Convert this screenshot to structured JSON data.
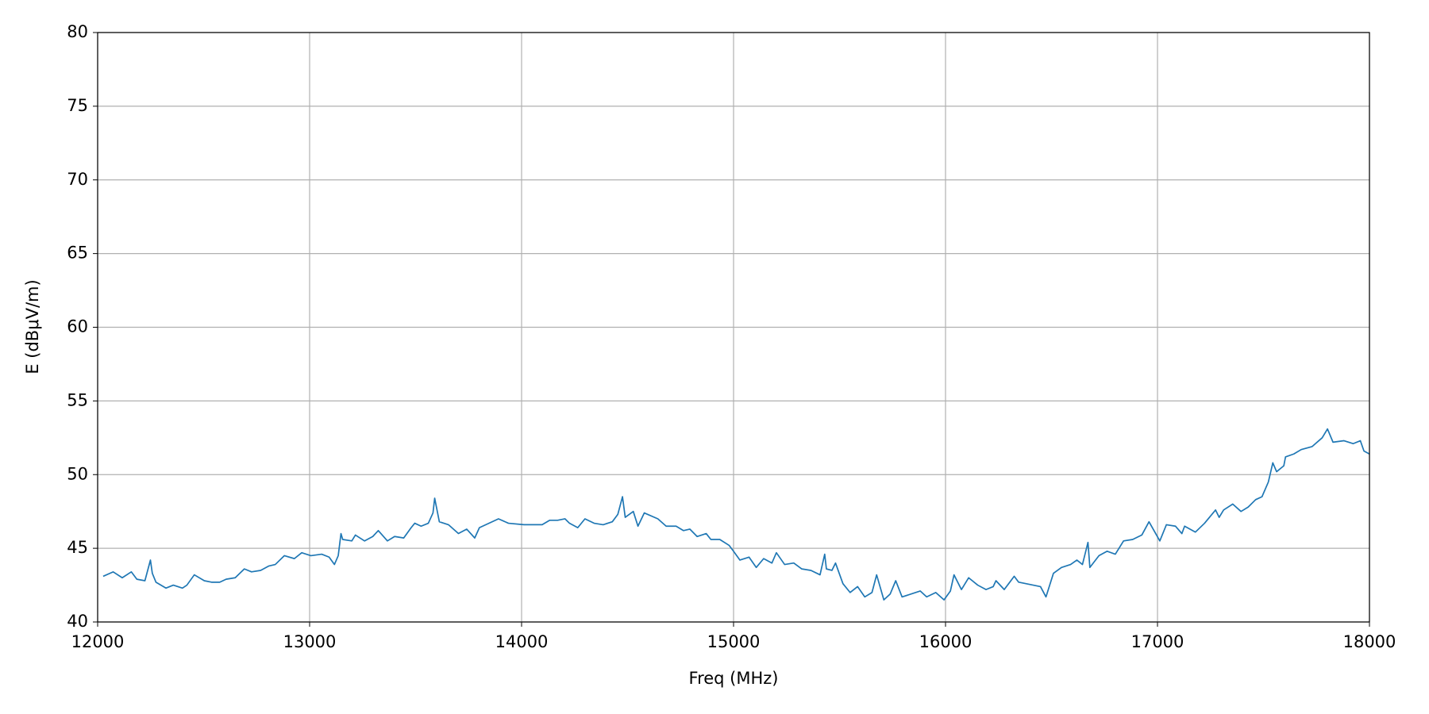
{
  "chart_data": {
    "type": "line",
    "xlabel": "Freq (MHz)",
    "ylabel": "E (dBμV/m)",
    "xlim": [
      12000,
      18000
    ],
    "ylim": [
      40,
      80
    ],
    "xticks": [
      12000,
      13000,
      14000,
      15000,
      16000,
      17000,
      18000
    ],
    "yticks": [
      40,
      45,
      50,
      55,
      60,
      65,
      70,
      75,
      80
    ],
    "grid": true,
    "series": [
      {
        "color": "#1f77b4",
        "x": [
          12026,
          12073,
          12116,
          12159,
          12185,
          12223,
          12249,
          12258,
          12275,
          12322,
          12357,
          12400,
          12421,
          12456,
          12503,
          12537,
          12576,
          12606,
          12649,
          12692,
          12726,
          12769,
          12808,
          12838,
          12881,
          12928,
          12963,
          13006,
          13057,
          13092,
          13117,
          13135,
          13148,
          13156,
          13199,
          13216,
          13259,
          13298,
          13324,
          13367,
          13401,
          13444,
          13479,
          13496,
          13526,
          13560,
          13582,
          13590,
          13612,
          13655,
          13702,
          13741,
          13779,
          13801,
          13891,
          13938,
          14011,
          14097,
          14132,
          14170,
          14205,
          14226,
          14265,
          14299,
          14342,
          14385,
          14428,
          14454,
          14476,
          14489,
          14527,
          14549,
          14579,
          14643,
          14682,
          14729,
          14764,
          14794,
          14828,
          14871,
          14893,
          14935,
          14979,
          15000,
          15030,
          15073,
          15107,
          15142,
          15181,
          15202,
          15241,
          15284,
          15322,
          15365,
          15408,
          15430,
          15438,
          15464,
          15481,
          15516,
          15550,
          15585,
          15619,
          15653,
          15675,
          15709,
          15739,
          15765,
          15795,
          15881,
          15911,
          15954,
          15993,
          16023,
          16040,
          16075,
          16109,
          16152,
          16191,
          16225,
          16238,
          16277,
          16324,
          16345,
          16448,
          16474,
          16509,
          16547,
          16590,
          16620,
          16646,
          16672,
          16681,
          16724,
          16762,
          16801,
          16840,
          16883,
          16926,
          16960,
          17011,
          17042,
          17085,
          17115,
          17128,
          17179,
          17222,
          17274,
          17291,
          17312,
          17355,
          17394,
          17428,
          17463,
          17493,
          17523,
          17544,
          17562,
          17596,
          17604,
          17643,
          17678,
          17729,
          17777,
          17802,
          17828,
          17880,
          17923,
          17957,
          17974,
          18000
        ],
        "values": [
          43.1,
          43.4,
          43.0,
          43.4,
          42.9,
          42.8,
          44.2,
          43.3,
          42.7,
          42.3,
          42.5,
          42.3,
          42.5,
          43.2,
          42.8,
          42.7,
          42.7,
          42.9,
          43.0,
          43.6,
          43.4,
          43.5,
          43.8,
          43.9,
          44.5,
          44.3,
          44.7,
          44.5,
          44.6,
          44.4,
          43.9,
          44.5,
          46.0,
          45.6,
          45.5,
          45.9,
          45.5,
          45.8,
          46.2,
          45.5,
          45.8,
          45.7,
          46.4,
          46.7,
          46.5,
          46.7,
          47.4,
          48.4,
          46.8,
          46.6,
          46.0,
          46.3,
          45.7,
          46.4,
          47.0,
          46.7,
          46.6,
          46.6,
          46.9,
          46.9,
          47.0,
          46.7,
          46.4,
          47.0,
          46.7,
          46.6,
          46.8,
          47.3,
          48.5,
          47.1,
          47.5,
          46.5,
          47.4,
          47.0,
          46.5,
          46.5,
          46.2,
          46.3,
          45.8,
          46.0,
          45.6,
          45.6,
          45.2,
          44.8,
          44.2,
          44.4,
          43.7,
          44.3,
          44.0,
          44.7,
          43.9,
          44.0,
          43.6,
          43.5,
          43.2,
          44.6,
          43.6,
          43.5,
          44.0,
          42.6,
          42.0,
          42.4,
          41.7,
          42.0,
          43.2,
          41.5,
          41.9,
          42.8,
          41.7,
          42.1,
          41.7,
          42.0,
          41.5,
          42.1,
          43.2,
          42.2,
          43.0,
          42.5,
          42.2,
          42.4,
          42.8,
          42.2,
          43.1,
          42.7,
          42.4,
          41.7,
          43.3,
          43.7,
          43.9,
          44.2,
          43.9,
          45.4,
          43.7,
          44.5,
          44.8,
          44.6,
          45.5,
          45.6,
          45.9,
          46.8,
          45.5,
          46.6,
          46.5,
          46.0,
          46.5,
          46.1,
          46.7,
          47.6,
          47.1,
          47.6,
          48.0,
          47.5,
          47.8,
          48.3,
          48.5,
          49.5,
          50.8,
          50.2,
          50.6,
          51.2,
          51.4,
          51.7,
          51.9,
          52.5,
          53.1,
          52.2,
          52.3,
          52.1,
          52.3,
          51.6,
          51.4
        ]
      }
    ]
  }
}
